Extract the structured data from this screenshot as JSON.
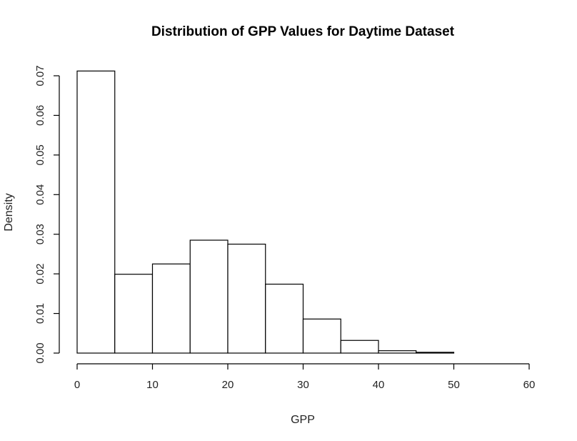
{
  "chart_data": {
    "type": "bar",
    "title": "Distribution of GPP Values for Daytime Dataset",
    "xlabel": "GPP",
    "ylabel": "Density",
    "bins": [
      [
        0,
        5
      ],
      [
        5,
        10
      ],
      [
        10,
        15
      ],
      [
        15,
        20
      ],
      [
        20,
        25
      ],
      [
        25,
        30
      ],
      [
        30,
        35
      ],
      [
        35,
        40
      ],
      [
        40,
        45
      ],
      [
        45,
        50
      ],
      [
        50,
        55
      ],
      [
        55,
        60
      ]
    ],
    "values": [
      0.0712,
      0.0199,
      0.0225,
      0.0285,
      0.0275,
      0.0174,
      0.0086,
      0.0032,
      0.0006,
      0.0002,
      0.0,
      0.0
    ],
    "xlim": [
      0,
      60
    ],
    "ylim": [
      0,
      0.07
    ],
    "xticks": [
      0,
      10,
      20,
      30,
      40,
      50,
      60
    ],
    "xtick_labels": [
      "0",
      "10",
      "20",
      "30",
      "40",
      "50",
      "60"
    ],
    "yticks": [
      0,
      0.01,
      0.02,
      0.03,
      0.04,
      0.05,
      0.06,
      0.07
    ],
    "ytick_labels": [
      "0.00",
      "0.01",
      "0.02",
      "0.03",
      "0.04",
      "0.05",
      "0.06",
      "0.07"
    ],
    "grid": false,
    "legend": "none",
    "colors": {
      "bar_fill": "#ffffff",
      "bar_stroke": "#000000"
    }
  }
}
